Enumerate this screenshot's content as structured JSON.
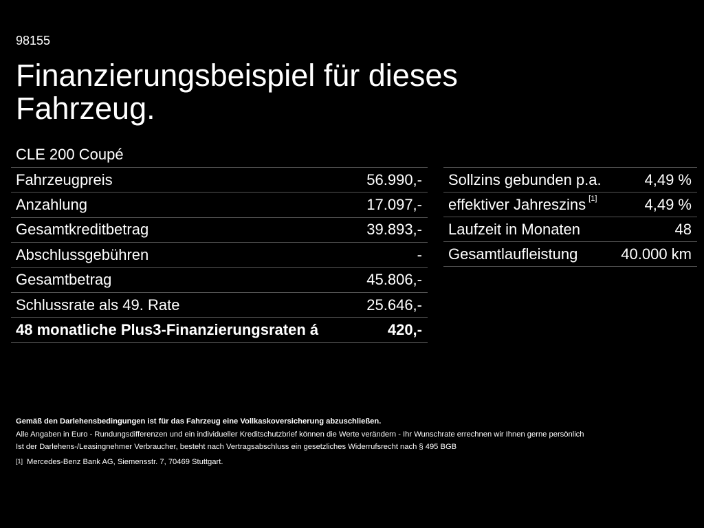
{
  "vehicle_id": "98155",
  "title": "Finanzierungsbeispiel für dieses Fahrzeug.",
  "model": "CLE 200 Coupé",
  "left_table": [
    {
      "label": "Fahrzeugpreis",
      "value": "56.990,-"
    },
    {
      "label": "Anzahlung",
      "value": "17.097,-"
    },
    {
      "label": "Gesamtkreditbetrag",
      "value": "39.893,-"
    },
    {
      "label": "Abschlussgebühren",
      "value": "-"
    },
    {
      "label": "Gesamtbetrag",
      "value": "45.806,-"
    },
    {
      "label": "Schlussrate als 49. Rate",
      "value": "25.646,-"
    },
    {
      "label": "48 monatliche Plus3-Finanzierungsraten á",
      "value": "420,-"
    }
  ],
  "right_table": [
    {
      "label": "Sollzins gebunden p.a.",
      "value": "4,49 %"
    },
    {
      "label": "effektiver Jahreszins",
      "ref": "[1]",
      "value": "4,49 %"
    },
    {
      "label": "Laufzeit in Monaten",
      "value": "48"
    },
    {
      "label": "Gesamtlaufleistung",
      "value": "40.000 km"
    }
  ],
  "footer": {
    "insurance": "Gemäß den Darlehensbedingungen ist für das Fahrzeug eine Vollkaskoversicherung abzuschließen.",
    "disclaimer": "Alle Angaben in Euro - Rundungsdifferenzen und ein individueller Kreditschutzbrief können die Werte verändern - Ihr Wunschrate errechnen wir Ihnen gerne persönlich",
    "withdrawal": "Ist der Darlehens-/Leasingnehmer Verbraucher, besteht nach Vertragsabschluss ein gesetzliches Widerrufsrecht nach § 495 BGB",
    "footnote_ref": "[1]",
    "footnote_text": "Mercedes-Benz Bank AG, Siemensstr. 7, 70469 Stuttgart."
  }
}
